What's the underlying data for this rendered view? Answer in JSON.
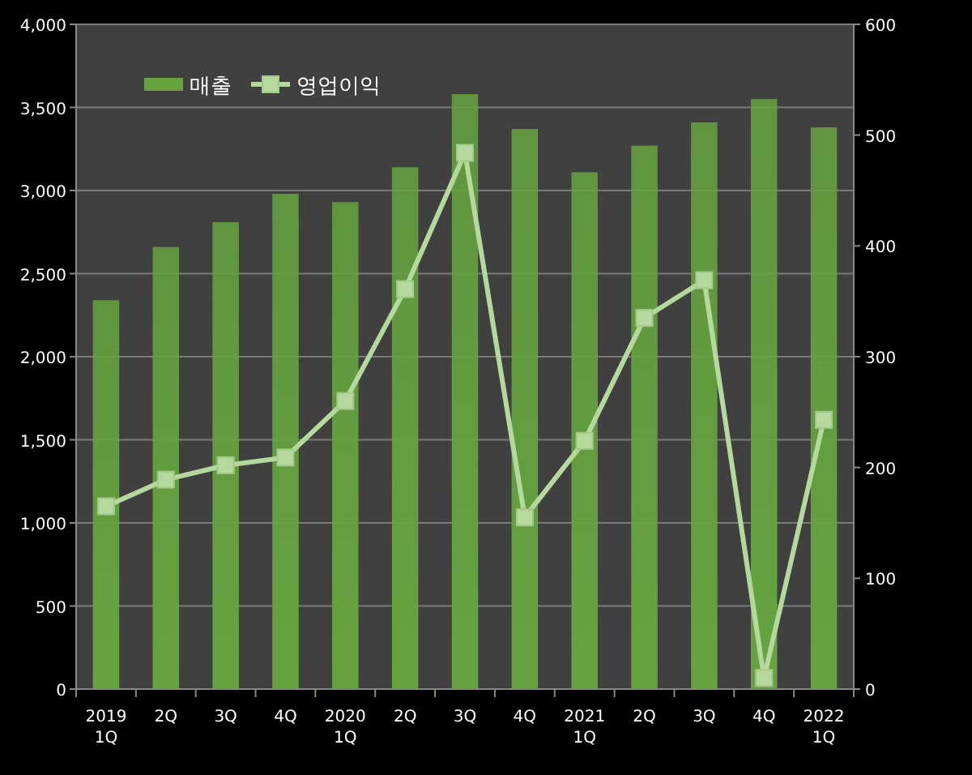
{
  "chart_data": {
    "type": "bar",
    "categories": [
      "2019\n1Q",
      "2Q",
      "3Q",
      "4Q",
      "2020\n1Q",
      "2Q",
      "3Q",
      "4Q",
      "2021\n1Q",
      "2Q",
      "3Q",
      "4Q",
      "2022\n1Q"
    ],
    "series": [
      {
        "name": "매출",
        "color": "#66a33f",
        "values": [
          2340,
          2660,
          2810,
          2980,
          2930,
          3140,
          3580,
          3370,
          3110,
          3270,
          3410,
          3550,
          3380
        ]
      },
      {
        "name": "영업이익",
        "type": "line",
        "axis": "y2",
        "color": "#b5d99c",
        "marker": "square",
        "values": [
          165,
          189,
          202,
          209,
          260,
          361,
          484,
          155,
          224,
          335,
          369,
          10,
          243
        ]
      }
    ],
    "ylim": [
      0,
      4000
    ],
    "yticks": [
      {
        "value": 0,
        "label": "0"
      },
      {
        "value": 500,
        "label": "500"
      },
      {
        "value": 1000,
        "label": "1,000"
      },
      {
        "value": 1500,
        "label": "1,500"
      },
      {
        "value": 2000,
        "label": "2,000"
      },
      {
        "value": 2500,
        "label": "2,500"
      },
      {
        "value": 3000,
        "label": "3,000"
      },
      {
        "value": 3500,
        "label": "3,500"
      },
      {
        "value": 4000,
        "label": "4,000"
      }
    ],
    "y2lim": [
      0,
      600
    ],
    "y2ticks": [
      0,
      100,
      200,
      300,
      400,
      500,
      600
    ],
    "grid": "y",
    "legend": "top left"
  }
}
